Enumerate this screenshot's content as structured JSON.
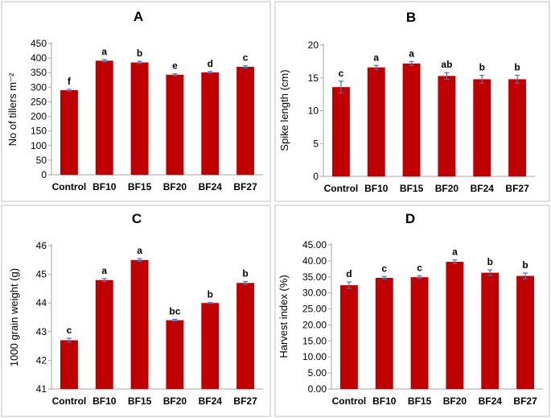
{
  "chart_data": [
    {
      "type": "bar",
      "panel": "A",
      "title": "A",
      "ylabel": "No of tillers m⁻²",
      "xlabel": "",
      "categories": [
        "Control",
        "BF10",
        "BF15",
        "BF20",
        "BF24",
        "BF27"
      ],
      "values": [
        290,
        391,
        385,
        343,
        351,
        370
      ],
      "errors": [
        3,
        4,
        4,
        3,
        3,
        4
      ],
      "letters": [
        "f",
        "a",
        "b",
        "e",
        "d",
        "c"
      ],
      "ylim": [
        0,
        450
      ],
      "yticks": [
        0,
        50,
        100,
        150,
        200,
        250,
        300,
        350,
        400,
        450
      ],
      "ytick_labels": [
        "0",
        "50",
        "100",
        "150",
        "200",
        "250",
        "300",
        "350",
        "400",
        "450"
      ],
      "color": "#c00000"
    },
    {
      "type": "bar",
      "panel": "B",
      "title": "B",
      "ylabel": "Spike length (cm)",
      "xlabel": "",
      "categories": [
        "Control",
        "BF10",
        "BF15",
        "BF20",
        "BF24",
        "BF27"
      ],
      "values": [
        13.6,
        16.6,
        17.2,
        15.3,
        14.8,
        14.8
      ],
      "errors": [
        0.9,
        0.3,
        0.3,
        0.5,
        0.6,
        0.6
      ],
      "letters": [
        "c",
        "a",
        "a",
        "ab",
        "b",
        "b"
      ],
      "ylim": [
        0,
        20
      ],
      "yticks": [
        0,
        5,
        10,
        15,
        20
      ],
      "ytick_labels": [
        "0",
        "5",
        "10",
        "15",
        "20"
      ],
      "color": "#c00000"
    },
    {
      "type": "bar",
      "panel": "C",
      "title": "C",
      "ylabel": "1000 grain weight (g)",
      "xlabel": "",
      "categories": [
        "Control",
        "BF10",
        "BF15",
        "BF20",
        "BF24",
        "BF27"
      ],
      "values": [
        42.7,
        44.8,
        45.5,
        43.4,
        44.0,
        44.7
      ],
      "errors": [
        0.07,
        0.05,
        0.05,
        0.03,
        0.02,
        0.05
      ],
      "letters": [
        "c",
        "a",
        "a",
        "bc",
        "b",
        "b"
      ],
      "ylim": [
        41,
        46
      ],
      "yticks": [
        41,
        42,
        43,
        44,
        45,
        46
      ],
      "ytick_labels": [
        "41",
        "42",
        "43",
        "44",
        "45",
        "46"
      ],
      "color": "#c00000"
    },
    {
      "type": "bar",
      "panel": "D",
      "title": "D",
      "ylabel": "Harvest index (%)",
      "xlabel": "",
      "categories": [
        "Control",
        "BF10",
        "BF15",
        "BF20",
        "BF24",
        "BF27"
      ],
      "values": [
        32.4,
        34.7,
        34.9,
        39.7,
        36.3,
        35.3
      ],
      "errors": [
        1.0,
        0.4,
        0.4,
        0.6,
        0.9,
        0.9
      ],
      "letters": [
        "d",
        "c",
        "c",
        "a",
        "b",
        "b"
      ],
      "ylim": [
        0,
        45
      ],
      "yticks": [
        0,
        5,
        10,
        15,
        20,
        25,
        30,
        35,
        40,
        45
      ],
      "ytick_labels": [
        "0.00",
        "5.00",
        "10.00",
        "15.00",
        "20.00",
        "25.00",
        "30.00",
        "35.00",
        "40.00",
        "45.00"
      ],
      "color": "#c00000"
    }
  ]
}
